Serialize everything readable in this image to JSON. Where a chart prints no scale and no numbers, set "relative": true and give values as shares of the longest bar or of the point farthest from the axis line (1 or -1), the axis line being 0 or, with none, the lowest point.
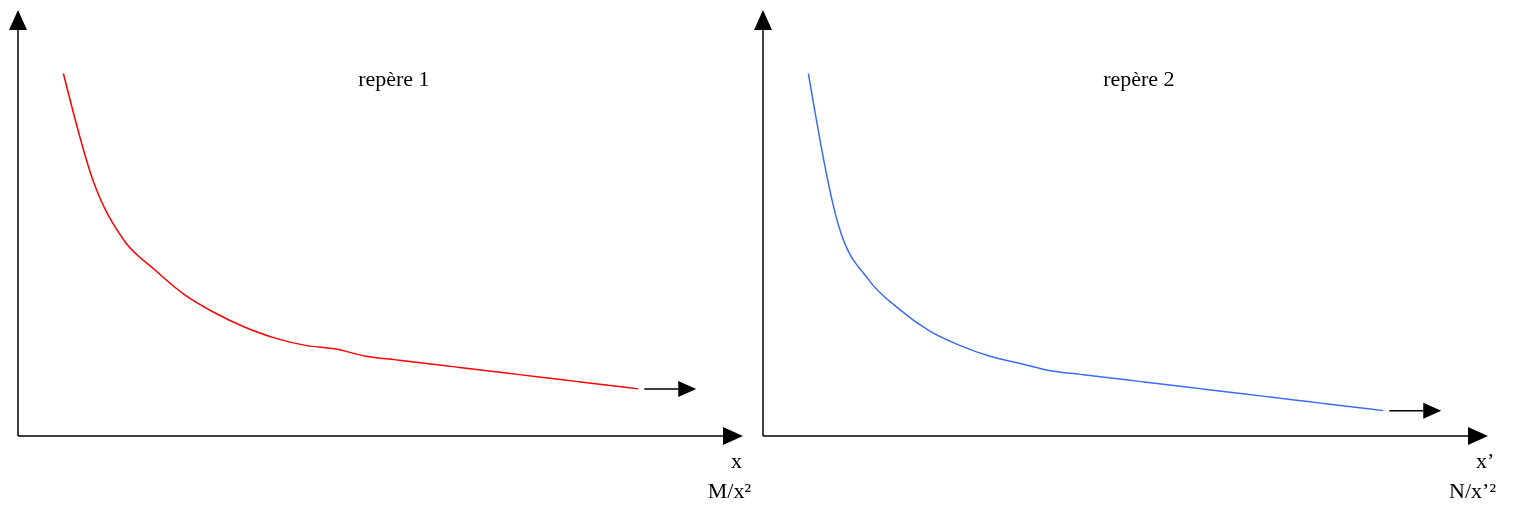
{
  "chart_data": [
    {
      "type": "line",
      "title": "repère 1",
      "xlabel": "x",
      "annotations": [
        "M/x²"
      ],
      "relative": true,
      "marker": "none",
      "color": "#ff0000",
      "categories": [
        null,
        null,
        null,
        null,
        null,
        null,
        null,
        null,
        null,
        null,
        null,
        null,
        null,
        null,
        null,
        null,
        null,
        null,
        null,
        null
      ],
      "values": [
        1,
        0.7,
        0.54,
        0.46,
        0.39,
        0.34,
        0.3,
        0.27,
        0.25,
        0.24,
        0.22,
        0.21,
        0.2,
        0.19,
        0.18,
        0.17,
        0.16,
        0.15,
        0.14,
        0.13
      ]
    },
    {
      "type": "line",
      "title": "repère 2",
      "xlabel": "x’",
      "annotations": [
        "N/x’²"
      ],
      "relative": true,
      "marker": "none",
      "color": "#3b6cf6",
      "categories": [
        null,
        null,
        null,
        null,
        null,
        null,
        null,
        null,
        null,
        null,
        null,
        null,
        null,
        null,
        null,
        null,
        null,
        null,
        null,
        null
      ],
      "values": [
        1,
        0.58,
        0.43,
        0.35,
        0.29,
        0.25,
        0.22,
        0.2,
        0.18,
        0.17,
        0.16,
        0.15,
        0.14,
        0.13,
        0.12,
        0.11,
        0.1,
        0.09,
        0.08,
        0.07
      ]
    }
  ]
}
